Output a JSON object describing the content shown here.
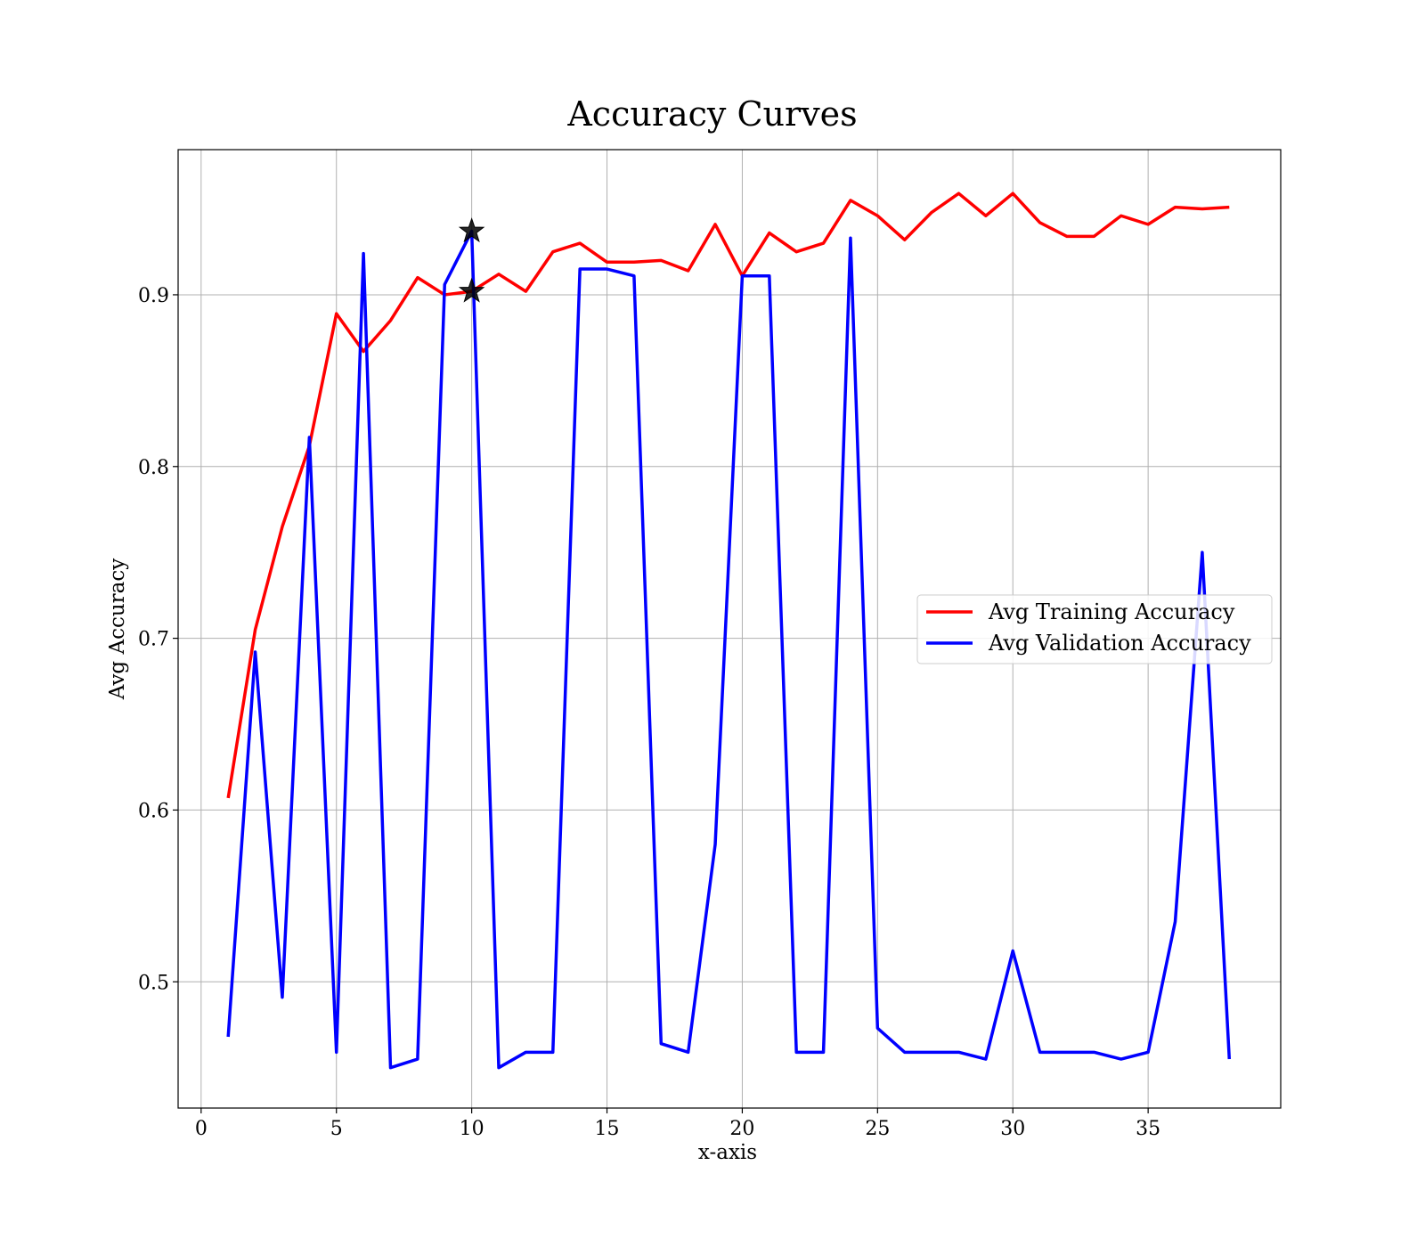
{
  "chart_data": {
    "type": "line",
    "title": "Accuracy Curves",
    "xlabel": "x-axis",
    "ylabel": "Avg Accuracy",
    "xlim": [
      -0.85,
      39.9
    ],
    "ylim": [
      0.4265,
      0.9845
    ],
    "xticks": [
      0,
      5,
      10,
      15,
      20,
      25,
      30,
      35
    ],
    "yticks": [
      0.5,
      0.6,
      0.7,
      0.8,
      0.9
    ],
    "grid": true,
    "legend_position": "center-right",
    "x": [
      1,
      2,
      3,
      4,
      5,
      6,
      7,
      8,
      9,
      10,
      11,
      12,
      13,
      14,
      15,
      16,
      17,
      18,
      19,
      20,
      21,
      22,
      23,
      24,
      25,
      26,
      27,
      28,
      29,
      30,
      31,
      32,
      33,
      34,
      35,
      36,
      37,
      38
    ],
    "series": [
      {
        "name": "Avg Training Accuracy",
        "color": "#ff0000",
        "values": [
          0.607,
          0.705,
          0.765,
          0.812,
          0.889,
          0.867,
          0.885,
          0.91,
          0.9,
          0.902,
          0.912,
          0.902,
          0.925,
          0.93,
          0.919,
          0.919,
          0.92,
          0.914,
          0.941,
          0.911,
          0.936,
          0.925,
          0.93,
          0.955,
          0.946,
          0.932,
          0.948,
          0.959,
          0.946,
          0.959,
          0.942,
          0.934,
          0.934,
          0.946,
          0.941,
          0.951,
          0.95,
          0.951
        ]
      },
      {
        "name": "Avg Validation Accuracy",
        "color": "#0000ff",
        "values": [
          0.468,
          0.692,
          0.491,
          0.817,
          0.459,
          0.924,
          0.45,
          0.455,
          0.906,
          0.937,
          0.45,
          0.459,
          0.459,
          0.915,
          0.915,
          0.911,
          0.464,
          0.459,
          0.58,
          0.911,
          0.911,
          0.459,
          0.459,
          0.933,
          0.473,
          0.459,
          0.459,
          0.459,
          0.455,
          0.518,
          0.459,
          0.459,
          0.459,
          0.455,
          0.459,
          0.535,
          0.75,
          0.455
        ]
      }
    ],
    "markers": [
      {
        "x": 10,
        "y": 0.937,
        "symbol": "star",
        "color": "#000000"
      },
      {
        "x": 10,
        "y": 0.902,
        "symbol": "star",
        "color": "#000000"
      }
    ]
  }
}
